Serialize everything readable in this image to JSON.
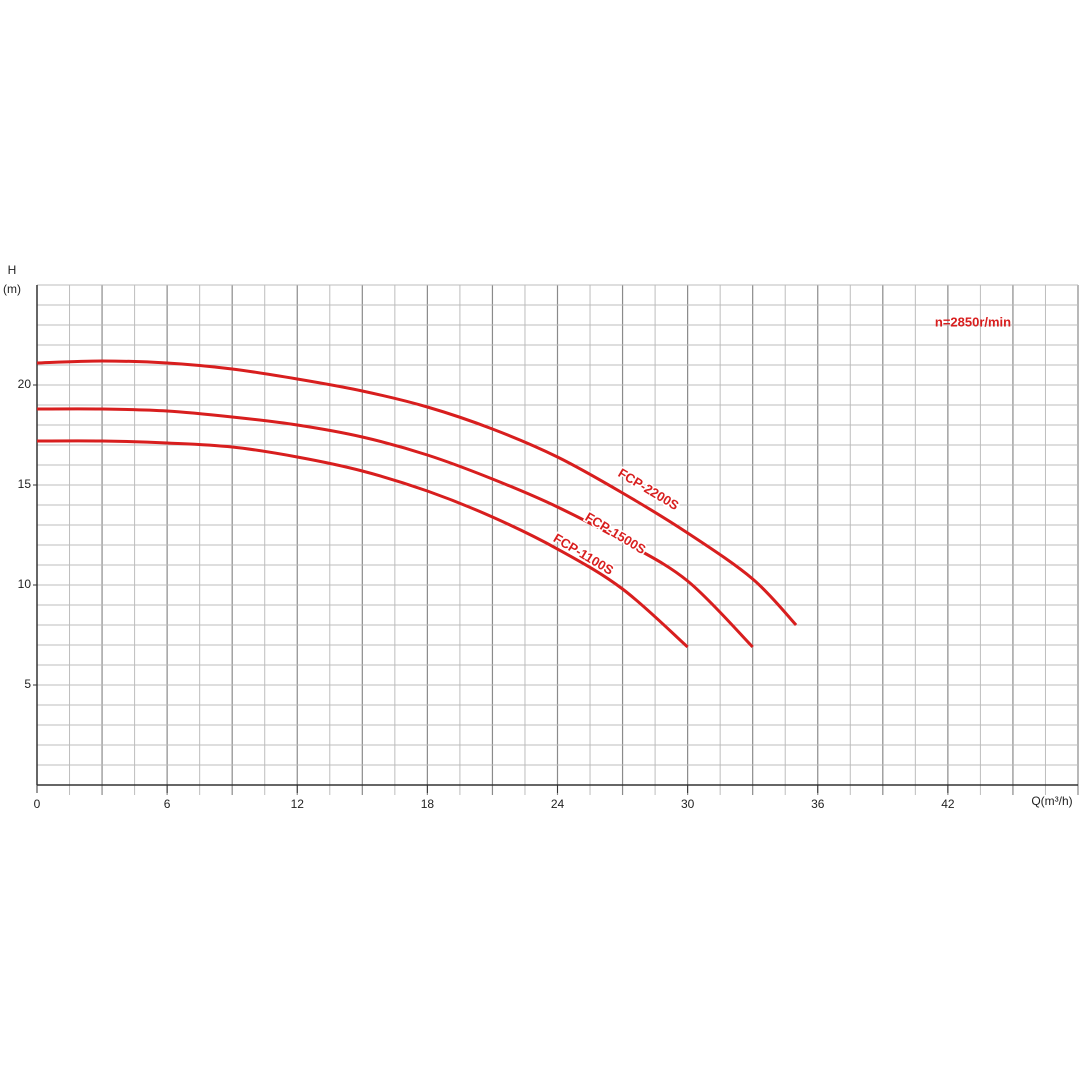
{
  "chart_data": {
    "type": "line",
    "x_label": "Q(m³/h)",
    "y_label": "H",
    "y_unit": "(m)",
    "annotation": "n=2850r/min",
    "xlim": [
      0,
      48
    ],
    "ylim": [
      0,
      25
    ],
    "xticks": [
      0,
      6,
      12,
      18,
      24,
      30,
      36,
      42
    ],
    "yticks": [
      5,
      10,
      15,
      20
    ],
    "x_grid": [
      1.5,
      3,
      4.5,
      6,
      7.5,
      9,
      10.5,
      12,
      13.5,
      15,
      16.5,
      18,
      19.5,
      21,
      22.5,
      24,
      25.5,
      27,
      28.5,
      30,
      31.5,
      33,
      34.5,
      36,
      37.5,
      39,
      40.5,
      42,
      43.5,
      45,
      46.5,
      48
    ],
    "y_grid": [
      1,
      2,
      3,
      4,
      5,
      6,
      7,
      8,
      9,
      10,
      11,
      12,
      13,
      14,
      15,
      16,
      17,
      18,
      19,
      20,
      21,
      22,
      23,
      24,
      25
    ],
    "grid": true,
    "series": [
      {
        "name": "FCP-2200S",
        "color": "#d81e1e",
        "x": [
          0,
          3,
          6,
          9,
          12,
          15,
          18,
          21,
          24,
          27,
          30,
          33,
          35
        ],
        "values": [
          21.1,
          21.2,
          21.1,
          20.8,
          20.3,
          19.7,
          18.9,
          17.8,
          16.4,
          14.6,
          12.6,
          10.3,
          8.0
        ]
      },
      {
        "name": "FCP-1500S",
        "color": "#d81e1e",
        "x": [
          0,
          3,
          6,
          9,
          12,
          15,
          18,
          21,
          24,
          27,
          30,
          33
        ],
        "values": [
          18.8,
          18.8,
          18.7,
          18.4,
          18.0,
          17.4,
          16.5,
          15.3,
          13.9,
          12.2,
          10.2,
          6.9
        ]
      },
      {
        "name": "FCP-1100S",
        "color": "#d81e1e",
        "x": [
          0,
          3,
          6,
          9,
          12,
          15,
          18,
          21,
          24,
          27,
          30
        ],
        "values": [
          17.2,
          17.2,
          17.1,
          16.9,
          16.4,
          15.7,
          14.7,
          13.4,
          11.8,
          9.8,
          6.9
        ]
      }
    ]
  }
}
